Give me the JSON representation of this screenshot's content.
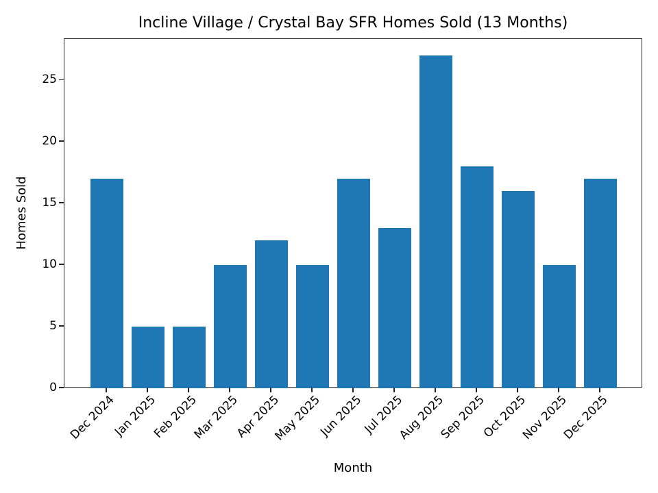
{
  "chart_data": {
    "type": "bar",
    "title": "Incline Village / Crystal Bay SFR Homes Sold (13 Months)",
    "xlabel": "Month",
    "ylabel": "Homes Sold",
    "categories": [
      "Dec 2024",
      "Jan 2025",
      "Feb 2025",
      "Mar 2025",
      "Apr 2025",
      "May 2025",
      "Jun 2025",
      "Jul 2025",
      "Aug 2025",
      "Sep 2025",
      "Oct 2025",
      "Nov 2025",
      "Dec 2025"
    ],
    "values": [
      17,
      5,
      5,
      10,
      12,
      10,
      17,
      13,
      27,
      18,
      16,
      10,
      17
    ],
    "ylim": [
      0,
      28.35
    ],
    "yticks": [
      0,
      5,
      10,
      15,
      20,
      25
    ],
    "grid": false,
    "legend": null,
    "bar_color": "#1f77b4",
    "xtick_rotation": 45
  }
}
